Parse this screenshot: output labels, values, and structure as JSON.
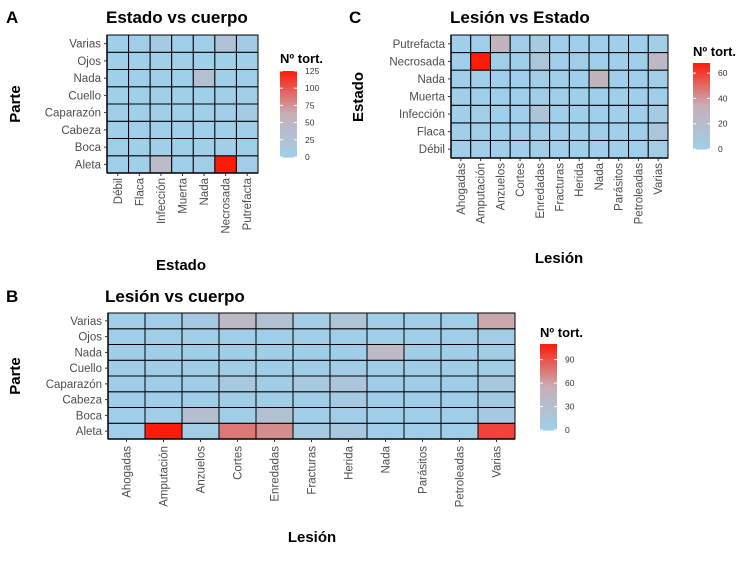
{
  "chart_data": [
    {
      "type": "heatmap",
      "panel_label": "A",
      "title": "Estado vs cuerpo",
      "xlabel": "Estado",
      "ylabel": "Parte",
      "x_categories": [
        "Débil",
        "Flaca",
        "Infección",
        "Muerta",
        "Nada",
        "Necrosada",
        "Putrefacta"
      ],
      "y_categories": [
        "Aleta",
        "Boca",
        "Cabeza",
        "Caparazón",
        "Cuello",
        "Nada",
        "Ojos",
        "Varias"
      ],
      "values": [
        [
          2,
          1,
          40,
          1,
          2,
          125,
          5
        ],
        [
          2,
          1,
          3,
          1,
          1,
          3,
          2
        ],
        [
          1,
          1,
          2,
          1,
          1,
          1,
          1
        ],
        [
          2,
          1,
          4,
          1,
          1,
          3,
          8
        ],
        [
          1,
          1,
          2,
          1,
          1,
          1,
          2
        ],
        [
          1,
          1,
          2,
          1,
          30,
          1,
          2
        ],
        [
          1,
          1,
          3,
          1,
          1,
          1,
          1
        ],
        [
          3,
          2,
          10,
          1,
          2,
          25,
          8
        ]
      ],
      "legend": {
        "title": "Nº tort.",
        "ticks": [
          0,
          25,
          50,
          75,
          100,
          125
        ],
        "range": [
          0,
          125
        ],
        "low_color": "#9fcfea",
        "mid_color": "#c7b0b6",
        "high_color": "#ff1a0a"
      }
    },
    {
      "type": "heatmap",
      "panel_label": "C",
      "title": "Lesión vs Estado",
      "xlabel": "Lesión",
      "ylabel": "Estado",
      "x_categories": [
        "Ahogadas",
        "Amputación",
        "Anzuelos",
        "Cortes",
        "Enredadas",
        "Fracturas",
        "Herida",
        "Nada",
        "Parásitos",
        "Petroleadas",
        "Varias"
      ],
      "y_categories": [
        "Débil",
        "Flaca",
        "Infección",
        "Muerta",
        "Nada",
        "Necrosada",
        "Putrefacta"
      ],
      "values": [
        [
          0,
          1,
          0,
          0,
          1,
          0,
          0,
          0,
          0,
          0,
          3
        ],
        [
          0,
          1,
          0,
          0,
          1,
          0,
          0,
          0,
          0,
          0,
          10
        ],
        [
          0,
          2,
          0,
          0,
          12,
          0,
          0,
          0,
          0,
          0,
          4
        ],
        [
          0,
          0,
          0,
          0,
          1,
          0,
          0,
          0,
          0,
          0,
          1
        ],
        [
          0,
          1,
          0,
          0,
          2,
          0,
          0,
          30,
          0,
          0,
          3
        ],
        [
          0,
          68,
          1,
          0,
          10,
          0,
          1,
          0,
          0,
          0,
          25
        ],
        [
          0,
          2,
          28,
          1,
          5,
          0,
          0,
          0,
          0,
          0,
          3
        ]
      ],
      "legend": {
        "title": "Nº tort.",
        "ticks": [
          0,
          20,
          40,
          60
        ],
        "range": [
          0,
          68
        ],
        "low_color": "#9fcfea",
        "mid_color": "#c7b0b6",
        "high_color": "#ff1a0a"
      }
    },
    {
      "type": "heatmap",
      "panel_label": "B",
      "title": "Lesión vs cuerpo",
      "xlabel": "Lesión",
      "ylabel": "Parte",
      "x_categories": [
        "Ahogadas",
        "Amputación",
        "Anzuelos",
        "Cortes",
        "Enredadas",
        "Fracturas",
        "Herida",
        "Nada",
        "Parásitos",
        "Petroleadas",
        "Varias"
      ],
      "y_categories": [
        "Aleta",
        "Boca",
        "Cabeza",
        "Caparazón",
        "Cuello",
        "Nada",
        "Ojos",
        "Varias"
      ],
      "values": [
        [
          1,
          110,
          5,
          75,
          68,
          8,
          12,
          2,
          1,
          1,
          95
        ],
        [
          1,
          2,
          28,
          2,
          25,
          2,
          3,
          1,
          1,
          1,
          10
        ],
        [
          1,
          1,
          2,
          2,
          3,
          2,
          8,
          1,
          1,
          1,
          6
        ],
        [
          1,
          2,
          4,
          12,
          5,
          12,
          16,
          1,
          1,
          1,
          13
        ],
        [
          1,
          1,
          2,
          3,
          2,
          2,
          4,
          1,
          1,
          1,
          4
        ],
        [
          1,
          1,
          1,
          1,
          1,
          1,
          2,
          38,
          1,
          1,
          3
        ],
        [
          1,
          1,
          1,
          2,
          1,
          1,
          1,
          1,
          1,
          1,
          3
        ],
        [
          1,
          2,
          10,
          40,
          25,
          5,
          20,
          1,
          1,
          1,
          58
        ]
      ],
      "legend": {
        "title": "Nº tort.",
        "ticks": [
          0,
          30,
          60,
          90
        ],
        "range": [
          0,
          110
        ],
        "low_color": "#9fcfea",
        "mid_color": "#c7b0b6",
        "high_color": "#ff1a0a"
      }
    }
  ]
}
